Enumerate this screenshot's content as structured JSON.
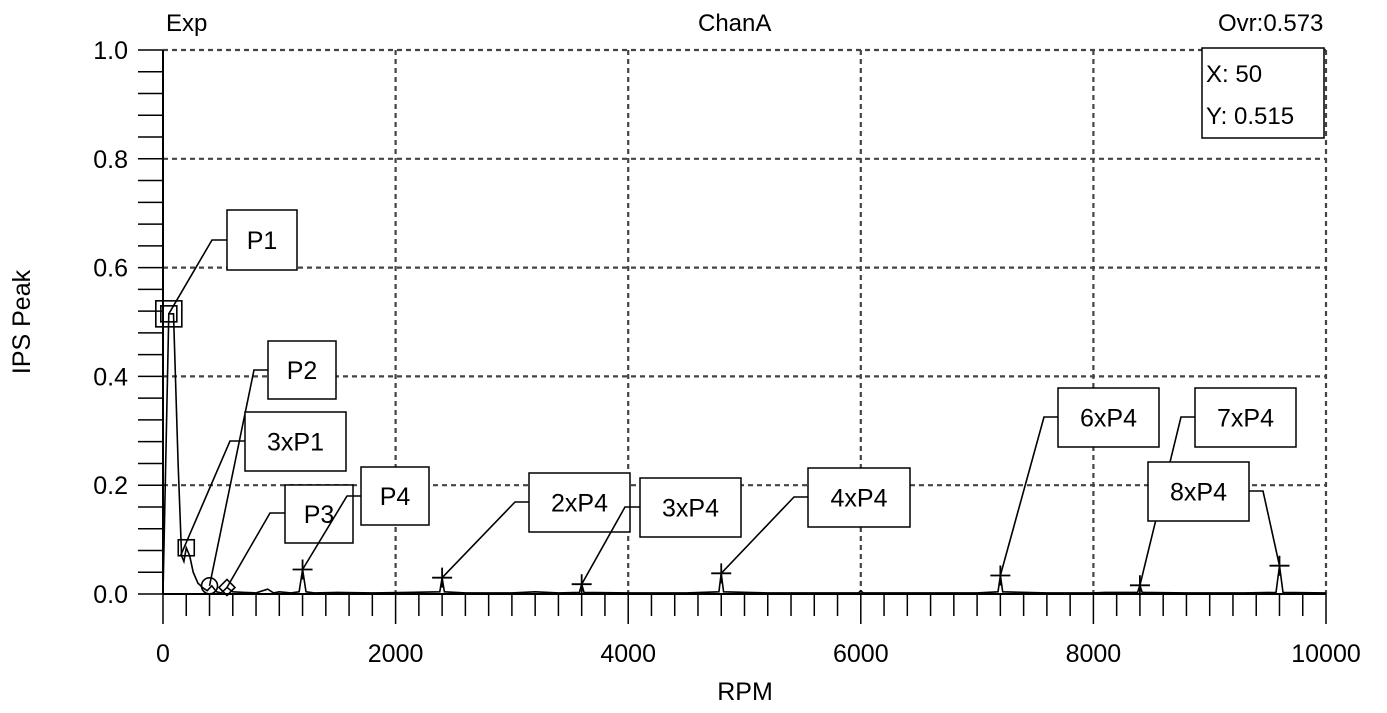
{
  "header": {
    "left": "Exp",
    "center": "ChanA",
    "right": "Ovr:0.573"
  },
  "readout": {
    "x": "X: 50",
    "y": "Y: 0.515"
  },
  "chart_data": {
    "type": "line",
    "title": "ChanA",
    "xlabel": "RPM",
    "ylabel": "IPS Peak",
    "xlim": [
      0,
      10000
    ],
    "ylim": [
      0,
      1.0
    ],
    "x_ticks": [
      "0",
      "2000",
      "4000",
      "6000",
      "8000",
      "10000"
    ],
    "y_ticks": [
      "0.0",
      "0.2",
      "0.4",
      "0.6",
      "0.8",
      "1.0"
    ],
    "grid": true,
    "series": [
      {
        "points": [
          [
            0,
            0.0
          ],
          [
            50,
            0.515
          ],
          [
            90,
            0.515
          ],
          [
            130,
            0.24
          ],
          [
            160,
            0.07
          ],
          [
            180,
            0.06
          ],
          [
            200,
            0.085
          ],
          [
            230,
            0.07
          ],
          [
            260,
            0.04
          ],
          [
            300,
            0.02
          ],
          [
            340,
            0.012
          ],
          [
            380,
            0.006
          ],
          [
            420,
            0.015
          ],
          [
            460,
            0.004
          ],
          [
            500,
            0.002
          ],
          [
            550,
            0.012
          ],
          [
            600,
            0.004
          ],
          [
            700,
            0.003
          ],
          [
            800,
            0.002
          ],
          [
            900,
            0.009
          ],
          [
            950,
            0.002
          ],
          [
            1000,
            0.004
          ],
          [
            1100,
            0.002
          ],
          [
            1170,
            0.004
          ],
          [
            1200,
            0.045
          ],
          [
            1230,
            0.004
          ],
          [
            1300,
            0.002
          ],
          [
            1500,
            0.003
          ],
          [
            1800,
            0.002
          ],
          [
            2100,
            0.003
          ],
          [
            2380,
            0.004
          ],
          [
            2400,
            0.03
          ],
          [
            2420,
            0.004
          ],
          [
            2600,
            0.002
          ],
          [
            3000,
            0.002
          ],
          [
            3200,
            0.004
          ],
          [
            3400,
            0.002
          ],
          [
            3580,
            0.003
          ],
          [
            3600,
            0.018
          ],
          [
            3620,
            0.003
          ],
          [
            4000,
            0.002
          ],
          [
            4500,
            0.002
          ],
          [
            4780,
            0.004
          ],
          [
            4800,
            0.038
          ],
          [
            4820,
            0.004
          ],
          [
            5200,
            0.002
          ],
          [
            5600,
            0.002
          ],
          [
            5980,
            0.002
          ],
          [
            6000,
            0.006
          ],
          [
            6020,
            0.002
          ],
          [
            6500,
            0.002
          ],
          [
            7000,
            0.002
          ],
          [
            7180,
            0.004
          ],
          [
            7200,
            0.034
          ],
          [
            7220,
            0.004
          ],
          [
            7600,
            0.002
          ],
          [
            8000,
            0.002
          ],
          [
            8100,
            0.003
          ],
          [
            8380,
            0.003
          ],
          [
            8400,
            0.016
          ],
          [
            8420,
            0.003
          ],
          [
            8800,
            0.002
          ],
          [
            9300,
            0.002
          ],
          [
            9570,
            0.003
          ],
          [
            9600,
            0.052
          ],
          [
            9630,
            0.003
          ],
          [
            10000,
            0.002
          ]
        ]
      }
    ],
    "markers": [
      {
        "x": 50,
        "y": 0.515,
        "shape": "square-double"
      },
      {
        "x": 200,
        "y": 0.085,
        "shape": "square"
      },
      {
        "x": 400,
        "y": 0.015,
        "shape": "circle"
      },
      {
        "x": 550,
        "y": 0.012,
        "shape": "diamond"
      },
      {
        "x": 1200,
        "y": 0.045,
        "shape": "star"
      },
      {
        "x": 2400,
        "y": 0.03,
        "shape": "star"
      },
      {
        "x": 3600,
        "y": 0.018,
        "shape": "star"
      },
      {
        "x": 4800,
        "y": 0.038,
        "shape": "star"
      },
      {
        "x": 7200,
        "y": 0.034,
        "shape": "star"
      },
      {
        "x": 8400,
        "y": 0.016,
        "shape": "star"
      },
      {
        "x": 9600,
        "y": 0.052,
        "shape": "star"
      }
    ],
    "annotations": [
      {
        "label": "P1",
        "x": 50,
        "y": 0.515
      },
      {
        "label": "P2",
        "x": 400,
        "y": 0.015
      },
      {
        "label": "3xP1",
        "x": 150,
        "y": 0.07
      },
      {
        "label": "P3",
        "x": 550,
        "y": 0.012
      },
      {
        "label": "P4",
        "x": 1200,
        "y": 0.045
      },
      {
        "label": "2xP4",
        "x": 2400,
        "y": 0.03
      },
      {
        "label": "3xP4",
        "x": 3600,
        "y": 0.018
      },
      {
        "label": "4xP4",
        "x": 4800,
        "y": 0.038
      },
      {
        "label": "6xP4",
        "x": 7200,
        "y": 0.034
      },
      {
        "label": "7xP4",
        "x": 8400,
        "y": 0.016
      },
      {
        "label": "8xP4",
        "x": 9600,
        "y": 0.052
      }
    ]
  }
}
